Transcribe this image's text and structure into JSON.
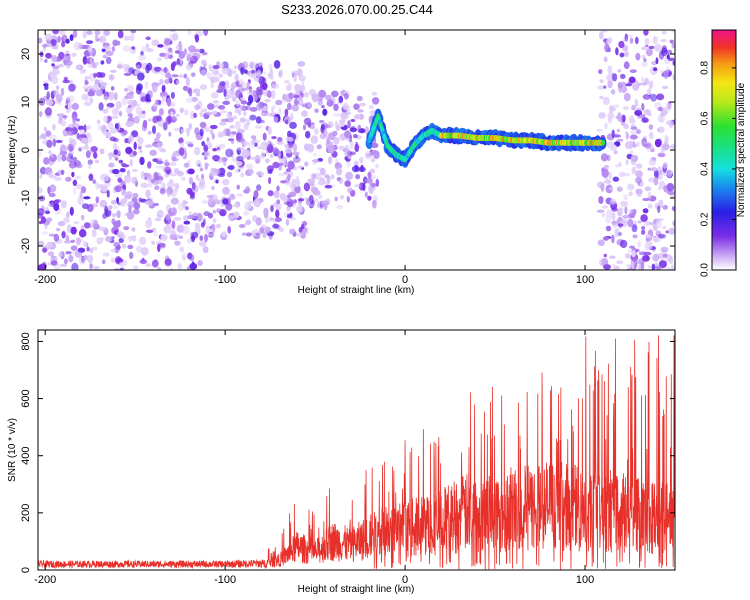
{
  "chart_data": [
    {
      "type": "heatmap",
      "title": "S233.2026.070.00.25.C44",
      "xlabel": "Height of straight line (km)",
      "ylabel": "Frequency (Hz)",
      "xlim": [
        -204,
        150
      ],
      "ylim": [
        -25,
        25
      ],
      "xticks": [
        -200,
        -100,
        0,
        100
      ],
      "yticks": [
        -20,
        -10,
        0,
        10,
        20
      ],
      "colorbar": {
        "label": "Normalized spectral amplitude",
        "range": [
          0.0,
          0.95
        ],
        "ticks": [
          0.0,
          0.2,
          0.4,
          0.6,
          0.8
        ]
      },
      "signal_track": {
        "description_points_x": [
          -20,
          -15,
          -10,
          -5,
          0,
          5,
          10,
          15,
          20,
          30,
          40,
          50,
          60,
          70,
          80,
          90,
          100,
          110
        ],
        "description_points_y": [
          2,
          7,
          1,
          -1,
          -2,
          1,
          3,
          4,
          3,
          3,
          2.5,
          2.5,
          2,
          2,
          1.5,
          1.5,
          1.5,
          1.5
        ]
      }
    },
    {
      "type": "line",
      "xlabel": "Height of straight line (km)",
      "ylabel": "SNR (10 * v/v)",
      "xlim": [
        -204,
        150
      ],
      "ylim": [
        0,
        840
      ],
      "xticks": [
        -200,
        -100,
        0,
        100
      ],
      "yticks": [
        0,
        200,
        400,
        600,
        800
      ],
      "series": [
        {
          "name": "SNR",
          "color": "#e8302a",
          "envelope_x": [
            -204,
            -150,
            -100,
            -80,
            -70,
            -60,
            -50,
            -40,
            -30,
            -20,
            -10,
            0,
            10,
            20,
            30,
            40,
            50,
            60,
            70,
            80,
            90,
            100,
            110,
            120,
            130,
            140,
            150
          ],
          "envelope_y": [
            25,
            25,
            25,
            30,
            50,
            120,
            90,
            150,
            130,
            170,
            200,
            210,
            230,
            250,
            290,
            300,
            300,
            320,
            320,
            340,
            330,
            310,
            310,
            300,
            280,
            270,
            260
          ]
        }
      ]
    }
  ]
}
